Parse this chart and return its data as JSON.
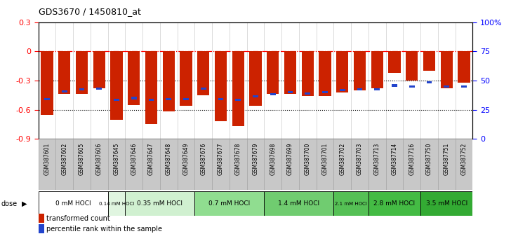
{
  "title": "GDS3670 / 1450810_at",
  "samples": [
    "GSM387601",
    "GSM387602",
    "GSM387605",
    "GSM387606",
    "GSM387645",
    "GSM387646",
    "GSM387647",
    "GSM387648",
    "GSM387649",
    "GSM387676",
    "GSM387677",
    "GSM387678",
    "GSM387679",
    "GSM387698",
    "GSM387699",
    "GSM387700",
    "GSM387701",
    "GSM387702",
    "GSM387703",
    "GSM387713",
    "GSM387714",
    "GSM387716",
    "GSM387750",
    "GSM387751",
    "GSM387752"
  ],
  "red_values": [
    -0.65,
    -0.44,
    -0.44,
    -0.38,
    -0.7,
    -0.55,
    -0.75,
    -0.62,
    -0.56,
    -0.45,
    -0.72,
    -0.77,
    -0.56,
    -0.44,
    -0.44,
    -0.46,
    -0.46,
    -0.42,
    -0.4,
    -0.38,
    -0.22,
    -0.3,
    -0.2,
    -0.38,
    -0.32
  ],
  "blue_values": [
    -0.49,
    -0.41,
    -0.39,
    -0.38,
    -0.5,
    -0.48,
    -0.5,
    -0.49,
    -0.49,
    -0.38,
    -0.49,
    -0.5,
    -0.46,
    -0.44,
    -0.42,
    -0.43,
    -0.42,
    -0.4,
    -0.39,
    -0.39,
    -0.35,
    -0.36,
    -0.32,
    -0.36,
    -0.36
  ],
  "dose_groups": [
    {
      "label": "0 mM HOCl",
      "start": 0,
      "end": 4,
      "color": "#ffffff"
    },
    {
      "label": "0.14 mM HOCl",
      "start": 4,
      "end": 5,
      "color": "#e0f5e0"
    },
    {
      "label": "0.35 mM HOCl",
      "start": 5,
      "end": 9,
      "color": "#d0f0d0"
    },
    {
      "label": "0.7 mM HOCl",
      "start": 9,
      "end": 13,
      "color": "#90dd90"
    },
    {
      "label": "1.4 mM HOCl",
      "start": 13,
      "end": 17,
      "color": "#70cc70"
    },
    {
      "label": "2.1 mM HOCl",
      "start": 17,
      "end": 19,
      "color": "#55c055"
    },
    {
      "label": "2.8 mM HOCl",
      "start": 19,
      "end": 22,
      "color": "#44bb44"
    },
    {
      "label": "3.5 mM HOCl",
      "start": 22,
      "end": 25,
      "color": "#33aa33"
    }
  ],
  "ylim_left": [
    -0.9,
    0.3
  ],
  "ylim_right": [
    0,
    100
  ],
  "red_color": "#cc2200",
  "blue_color": "#2244cc",
  "bar_width": 0.7,
  "bg_gray": "#c8c8c8",
  "cell_border": "#aaaaaa"
}
